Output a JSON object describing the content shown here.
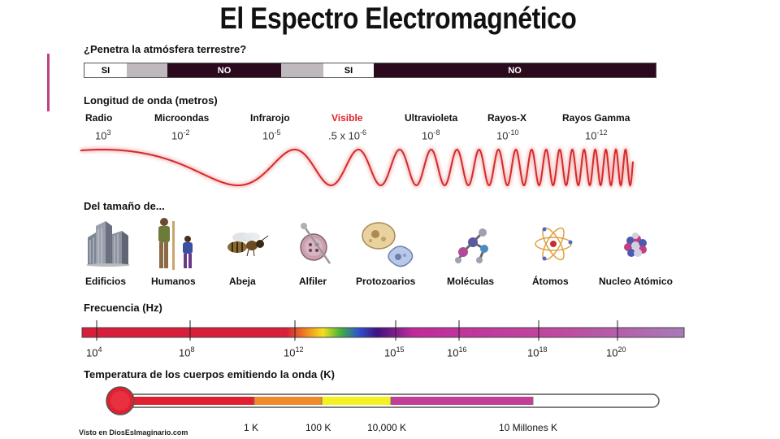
{
  "title": "El Espectro Electromagnético",
  "atmosphere": {
    "label": "¿Penetra la atmósfera terrestre?",
    "segments": [
      {
        "text": "SI",
        "kind": "si"
      },
      {
        "text": "",
        "kind": "gray"
      },
      {
        "text": "NO",
        "kind": "no"
      },
      {
        "text": "",
        "kind": "gray"
      },
      {
        "text": "SI",
        "kind": "si"
      },
      {
        "text": "NO",
        "kind": "no"
      }
    ]
  },
  "wavelength": {
    "label": "Longitud de onda (metros)",
    "bands": [
      {
        "name": "Radio",
        "base": "10",
        "exp": "3"
      },
      {
        "name": "Microondas",
        "base": "10",
        "exp": "-2"
      },
      {
        "name": "Infrarojo",
        "base": "10",
        "exp": "-5"
      },
      {
        "name": "Visible",
        "base": ".5 x 10",
        "exp": "-6"
      },
      {
        "name": "Ultravioleta",
        "base": "10",
        "exp": "-8"
      },
      {
        "name": "Rayos-X",
        "base": "10",
        "exp": "-10"
      },
      {
        "name": "Rayos Gamma",
        "base": "10",
        "exp": "-12"
      }
    ],
    "wave_color": "#d42a2a"
  },
  "size": {
    "label": "Del tamaño de...",
    "objects": [
      {
        "name": "Edificios",
        "icon": "buildings-icon"
      },
      {
        "name": "Humanos",
        "icon": "humans-icon"
      },
      {
        "name": "Abeja",
        "icon": "bee-icon"
      },
      {
        "name": "Alfiler",
        "icon": "pin-icon"
      },
      {
        "name": "Protozoarios",
        "icon": "protozoa-icon"
      },
      {
        "name": "Moléculas",
        "icon": "molecule-icon"
      },
      {
        "name": "Átomos",
        "icon": "atom-icon"
      },
      {
        "name": "Nucleo Atómico",
        "icon": "nucleus-icon"
      }
    ]
  },
  "frequency": {
    "label": "Frecuencia (Hz)",
    "ticks": [
      {
        "base": "10",
        "exp": "4"
      },
      {
        "base": "10",
        "exp": "8"
      },
      {
        "base": "10",
        "exp": "12"
      },
      {
        "base": "10",
        "exp": "15"
      },
      {
        "base": "10",
        "exp": "16"
      },
      {
        "base": "10",
        "exp": "18"
      },
      {
        "base": "10",
        "exp": "20"
      }
    ]
  },
  "temperature": {
    "label": "Temperatura de los cuerpos emitiendo la onda (K)",
    "marks": [
      "1 K",
      "100 K",
      "10,000 K",
      "10 Millones K"
    ],
    "colors": {
      "bulb": "#e02030",
      "red": "#e02030",
      "orange": "#f08a2a",
      "yellow": "#f5f020",
      "magenta": "#c23f95"
    }
  },
  "credit": "Visto en DiosEsImaginario.com"
}
